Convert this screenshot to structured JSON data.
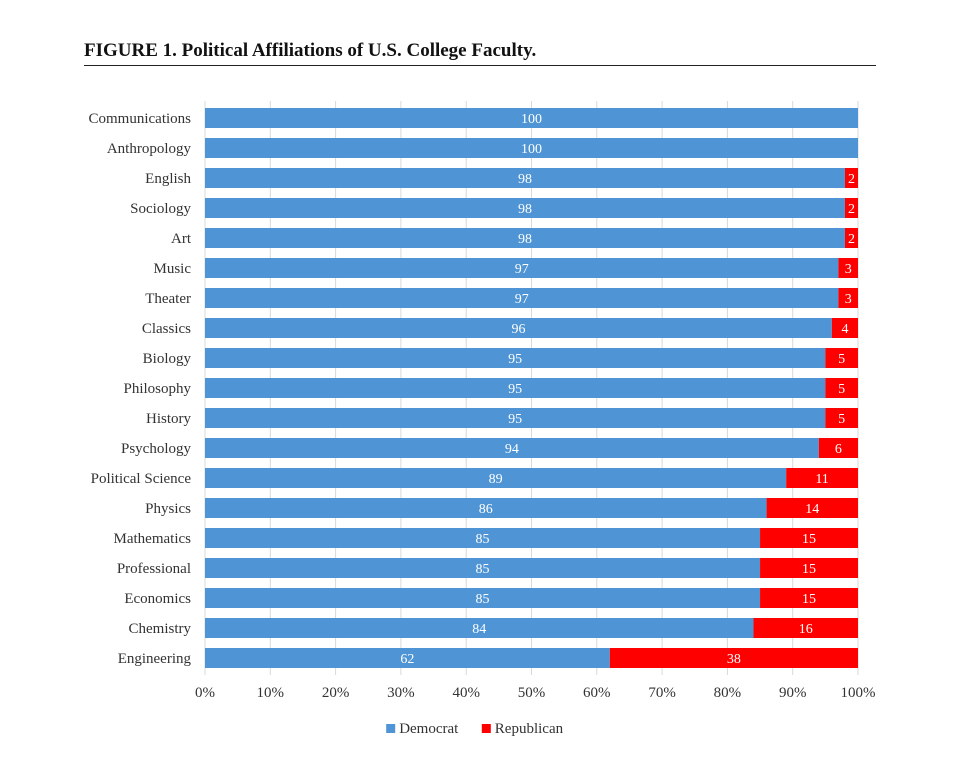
{
  "figure": {
    "title": "FIGURE 1. Political Affiliations of U.S. College Faculty."
  },
  "chart_data": {
    "type": "bar",
    "orientation": "horizontal",
    "stacked": true,
    "categories": [
      "Communications",
      "Anthropology",
      "English",
      "Sociology",
      "Art",
      "Music",
      "Theater",
      "Classics",
      "Biology",
      "Philosophy",
      "History",
      "Psychology",
      "Political Science",
      "Physics",
      "Mathematics",
      "Professional",
      "Economics",
      "Chemistry",
      "Engineering"
    ],
    "series": [
      {
        "name": "Democrat",
        "color": "#4f94d4",
        "values": [
          100,
          100,
          98,
          98,
          98,
          97,
          97,
          96,
          95,
          95,
          95,
          94,
          89,
          86,
          85,
          85,
          85,
          84,
          62
        ]
      },
      {
        "name": "Republican",
        "color": "#ff0000",
        "values": [
          0,
          0,
          2,
          2,
          2,
          3,
          3,
          4,
          5,
          5,
          5,
          6,
          11,
          14,
          15,
          15,
          15,
          16,
          38
        ]
      }
    ],
    "xlim": [
      0,
      100
    ],
    "x_ticks": [
      "0%",
      "10%",
      "20%",
      "30%",
      "40%",
      "50%",
      "60%",
      "70%",
      "80%",
      "90%",
      "100%"
    ],
    "grid": true,
    "legend_position": "bottom"
  }
}
